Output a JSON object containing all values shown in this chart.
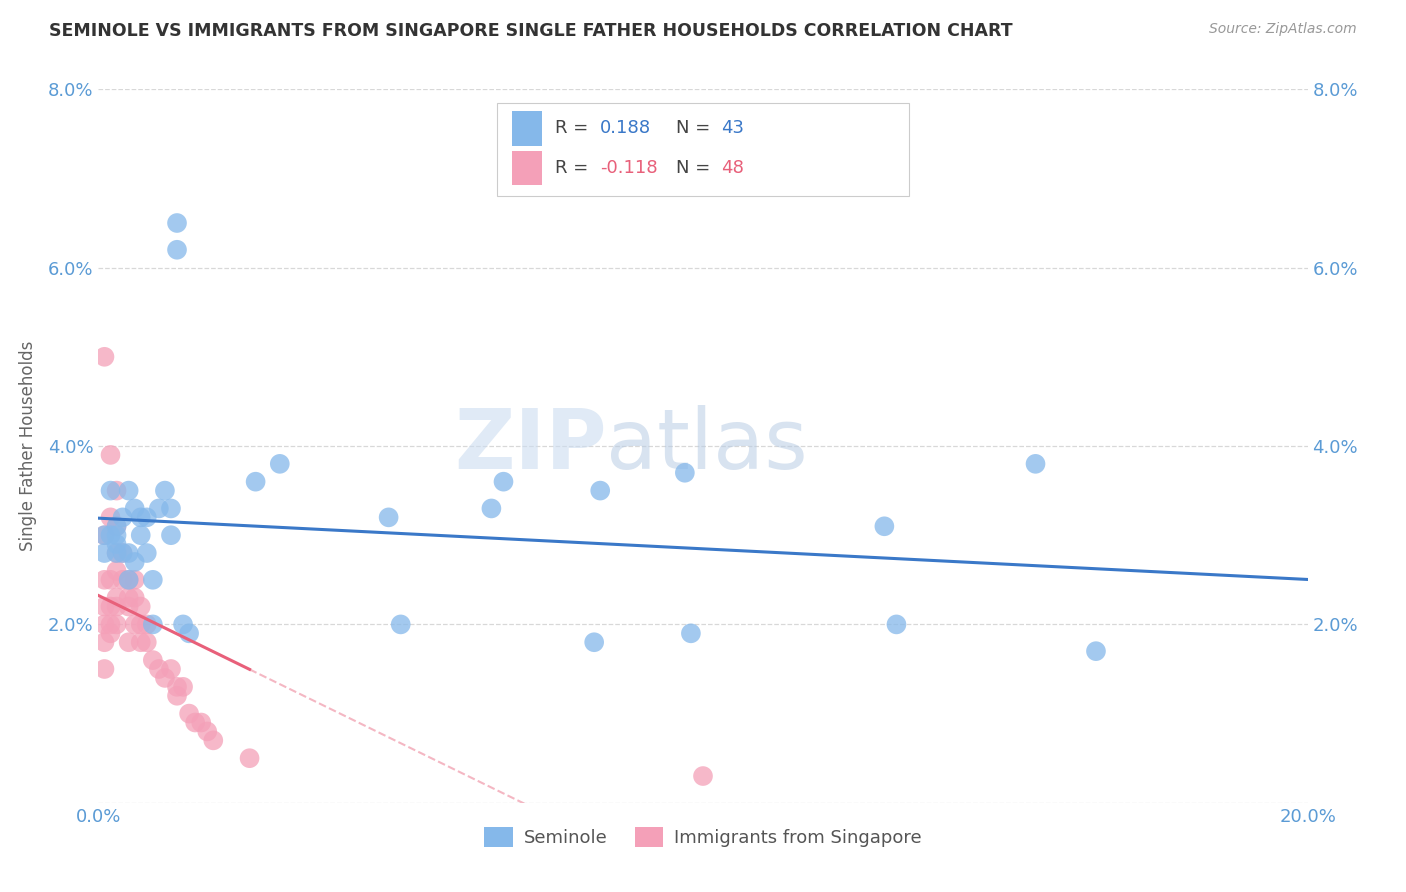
{
  "title": "SEMINOLE VS IMMIGRANTS FROM SINGAPORE SINGLE FATHER HOUSEHOLDS CORRELATION CHART",
  "source": "Source: ZipAtlas.com",
  "ylabel_label": "Single Father Households",
  "xlim": [
    0.0,
    0.2
  ],
  "ylim": [
    0.0,
    0.08
  ],
  "watermark_line1": "ZIP",
  "watermark_line2": "atlas",
  "blue_color": "#85B8EA",
  "pink_color": "#F4A0B8",
  "blue_line_color": "#3A78C8",
  "pink_line_color": "#E8607A",
  "axis_label_color": "#5B9BD5",
  "title_color": "#333333",
  "source_color": "#999999",
  "grid_color": "#d8d8d8",
  "seminole_x": [
    0.001,
    0.001,
    0.002,
    0.002,
    0.003,
    0.003,
    0.003,
    0.003,
    0.004,
    0.004,
    0.005,
    0.005,
    0.005,
    0.006,
    0.006,
    0.007,
    0.007,
    0.008,
    0.008,
    0.009,
    0.009,
    0.01,
    0.011,
    0.012,
    0.012,
    0.013,
    0.013,
    0.014,
    0.015,
    0.026,
    0.03,
    0.048,
    0.05,
    0.065,
    0.067,
    0.082,
    0.083,
    0.097,
    0.098,
    0.13,
    0.132,
    0.155,
    0.165
  ],
  "seminole_y": [
    0.028,
    0.03,
    0.035,
    0.03,
    0.031,
    0.029,
    0.03,
    0.028,
    0.028,
    0.032,
    0.025,
    0.028,
    0.035,
    0.027,
    0.033,
    0.03,
    0.032,
    0.032,
    0.028,
    0.025,
    0.02,
    0.033,
    0.035,
    0.033,
    0.03,
    0.065,
    0.062,
    0.02,
    0.019,
    0.036,
    0.038,
    0.032,
    0.02,
    0.033,
    0.036,
    0.018,
    0.035,
    0.037,
    0.019,
    0.031,
    0.02,
    0.038,
    0.017
  ],
  "singapore_x": [
    0.001,
    0.001,
    0.001,
    0.001,
    0.001,
    0.001,
    0.001,
    0.002,
    0.002,
    0.002,
    0.002,
    0.002,
    0.002,
    0.003,
    0.003,
    0.003,
    0.003,
    0.003,
    0.003,
    0.003,
    0.004,
    0.004,
    0.005,
    0.005,
    0.005,
    0.005,
    0.006,
    0.006,
    0.006,
    0.007,
    0.007,
    0.007,
    0.008,
    0.008,
    0.009,
    0.01,
    0.011,
    0.012,
    0.013,
    0.013,
    0.014,
    0.015,
    0.016,
    0.017,
    0.018,
    0.019,
    0.025,
    0.1
  ],
  "singapore_y": [
    0.05,
    0.03,
    0.025,
    0.022,
    0.02,
    0.018,
    0.015,
    0.039,
    0.032,
    0.025,
    0.022,
    0.02,
    0.019,
    0.035,
    0.031,
    0.028,
    0.026,
    0.023,
    0.022,
    0.02,
    0.028,
    0.025,
    0.025,
    0.023,
    0.022,
    0.018,
    0.025,
    0.023,
    0.02,
    0.022,
    0.02,
    0.018,
    0.02,
    0.018,
    0.016,
    0.015,
    0.014,
    0.015,
    0.013,
    0.012,
    0.013,
    0.01,
    0.009,
    0.009,
    0.008,
    0.007,
    0.005,
    0.003
  ]
}
